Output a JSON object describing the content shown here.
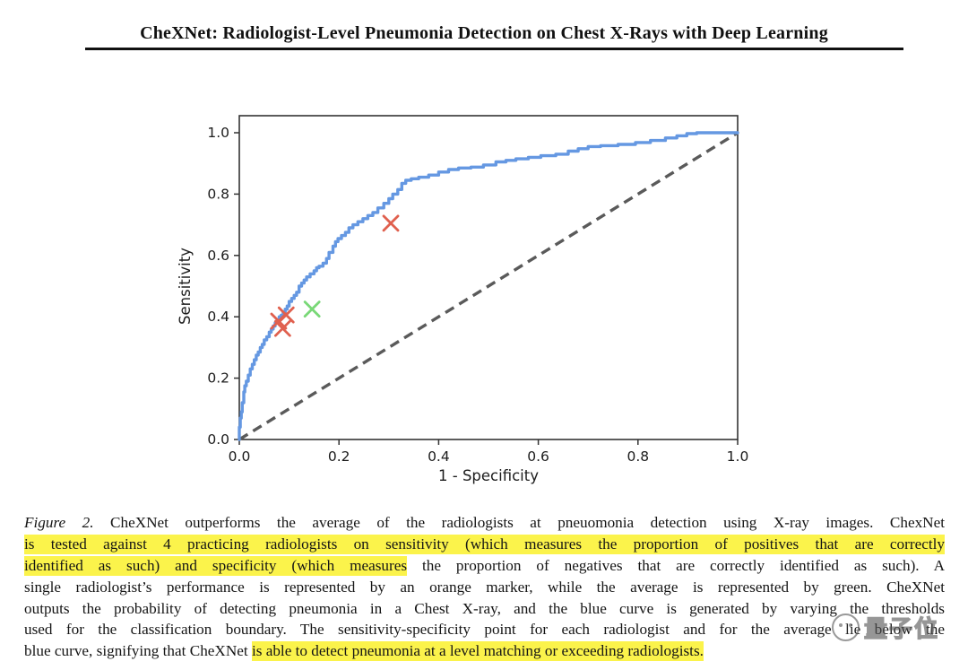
{
  "page": {
    "title": "CheXNet: Radiologist-Level Pneumonia Detection on Chest X-Rays with Deep Learning"
  },
  "chart_data": {
    "type": "line",
    "title": "",
    "xlabel": "1 - Specificity",
    "ylabel": "Sensitivity",
    "xlim": [
      0.0,
      1.0
    ],
    "ylim": [
      0.0,
      1.05
    ],
    "grid": false,
    "legend": "none",
    "xticks": [
      0.0,
      0.2,
      0.4,
      0.6,
      0.8,
      1.0
    ],
    "yticks": [
      0.0,
      0.2,
      0.4,
      0.6,
      0.8,
      1.0
    ],
    "frame_color": "#333333",
    "roc_curve": {
      "name": "chexnet-roc-curve",
      "color": "#6598e2",
      "points": [
        [
          0,
          0
        ],
        [
          0.002,
          0.04
        ],
        [
          0.004,
          0.07
        ],
        [
          0.006,
          0.09
        ],
        [
          0.009,
          0.12
        ],
        [
          0.011,
          0.155
        ],
        [
          0.014,
          0.175
        ],
        [
          0.018,
          0.19
        ],
        [
          0.022,
          0.21
        ],
        [
          0.026,
          0.23
        ],
        [
          0.03,
          0.245
        ],
        [
          0.034,
          0.26
        ],
        [
          0.038,
          0.275
        ],
        [
          0.042,
          0.285
        ],
        [
          0.046,
          0.3
        ],
        [
          0.05,
          0.31
        ],
        [
          0.055,
          0.325
        ],
        [
          0.06,
          0.335
        ],
        [
          0.064,
          0.35
        ],
        [
          0.068,
          0.36
        ],
        [
          0.072,
          0.37
        ],
        [
          0.076,
          0.38
        ],
        [
          0.08,
          0.39
        ],
        [
          0.084,
          0.4
        ],
        [
          0.088,
          0.405
        ],
        [
          0.092,
          0.415
        ],
        [
          0.096,
          0.425
        ],
        [
          0.1,
          0.435
        ],
        [
          0.105,
          0.45
        ],
        [
          0.11,
          0.46
        ],
        [
          0.115,
          0.47
        ],
        [
          0.12,
          0.48
        ],
        [
          0.125,
          0.5
        ],
        [
          0.13,
          0.51
        ],
        [
          0.135,
          0.52
        ],
        [
          0.142,
          0.53
        ],
        [
          0.15,
          0.54
        ],
        [
          0.155,
          0.55
        ],
        [
          0.16,
          0.56
        ],
        [
          0.168,
          0.565
        ],
        [
          0.175,
          0.575
        ],
        [
          0.18,
          0.59
        ],
        [
          0.188,
          0.61
        ],
        [
          0.193,
          0.63
        ],
        [
          0.198,
          0.645
        ],
        [
          0.205,
          0.655
        ],
        [
          0.213,
          0.665
        ],
        [
          0.22,
          0.675
        ],
        [
          0.228,
          0.69
        ],
        [
          0.238,
          0.7
        ],
        [
          0.248,
          0.71
        ],
        [
          0.258,
          0.72
        ],
        [
          0.268,
          0.73
        ],
        [
          0.278,
          0.74
        ],
        [
          0.29,
          0.755
        ],
        [
          0.3,
          0.77
        ],
        [
          0.308,
          0.785
        ],
        [
          0.318,
          0.8
        ],
        [
          0.326,
          0.815
        ],
        [
          0.334,
          0.835
        ],
        [
          0.345,
          0.845
        ],
        [
          0.36,
          0.85
        ],
        [
          0.38,
          0.855
        ],
        [
          0.4,
          0.862
        ],
        [
          0.42,
          0.872
        ],
        [
          0.44,
          0.88
        ],
        [
          0.465,
          0.885
        ],
        [
          0.49,
          0.888
        ],
        [
          0.515,
          0.895
        ],
        [
          0.535,
          0.905
        ],
        [
          0.555,
          0.91
        ],
        [
          0.58,
          0.915
        ],
        [
          0.605,
          0.92
        ],
        [
          0.635,
          0.925
        ],
        [
          0.66,
          0.93
        ],
        [
          0.68,
          0.94
        ],
        [
          0.7,
          0.948
        ],
        [
          0.725,
          0.955
        ],
        [
          0.76,
          0.958
        ],
        [
          0.795,
          0.962
        ],
        [
          0.825,
          0.968
        ],
        [
          0.855,
          0.975
        ],
        [
          0.878,
          0.983
        ],
        [
          0.898,
          0.99
        ],
        [
          0.918,
          0.997
        ],
        [
          0.93,
          1.0
        ],
        [
          1.0,
          1.0
        ]
      ]
    },
    "diagonal": {
      "name": "chance-line",
      "style": "dashed",
      "color": "#5a5a5a",
      "from": [
        0,
        0
      ],
      "to": [
        1,
        1
      ]
    },
    "markers": [
      {
        "name": "radiologist-1",
        "shape": "x",
        "color": "#e0604e",
        "x": 0.079,
        "y": 0.386
      },
      {
        "name": "radiologist-2",
        "shape": "x",
        "color": "#e0604e",
        "x": 0.087,
        "y": 0.362
      },
      {
        "name": "radiologist-3",
        "shape": "x",
        "color": "#e0604e",
        "x": 0.094,
        "y": 0.406
      },
      {
        "name": "radiologist-4",
        "shape": "x",
        "color": "#e0604e",
        "x": 0.304,
        "y": 0.705
      },
      {
        "name": "radiologists-average",
        "shape": "x",
        "color": "#79d877",
        "x": 0.146,
        "y": 0.425
      }
    ]
  },
  "caption": {
    "highlight_color": "#fbf34b",
    "lines": [
      [
        {
          "t": "Figure 2.",
          "i": true
        },
        {
          "t": " CheXNet outperforms the average of the radiologists at pneuomonia detection using X-ray images.  ChexNet"
        }
      ],
      [
        {
          "t": "is tested against 4 practicing radiologists on sensitivity (which measures the proportion of positives that are correctly",
          "hl": true
        }
      ],
      [
        {
          "t": "identified as such) and specificity (which measures",
          "hl": true
        },
        {
          "t": " the proportion of negatives that are correctly identified as such).  A"
        }
      ],
      [
        {
          "t": "single radiologist’s performance is represented by an orange marker, while the average is represented by green.  CheXNet"
        }
      ],
      [
        {
          "t": "outputs the probability of detecting pneumonia in a Chest X-ray, and the blue curve is generated by varying the thresholds"
        }
      ],
      [
        {
          "t": "used for the classification boundary.  The sensitivity-specificity point for each radiologist and for the average lie below the"
        }
      ],
      [
        {
          "t": "blue curve, signifying that CheXNet "
        },
        {
          "t": "is able to detect pneumonia at a level matching or exceeding radiologists.",
          "hl": true
        }
      ]
    ]
  },
  "watermark": {
    "text": "量子位"
  }
}
